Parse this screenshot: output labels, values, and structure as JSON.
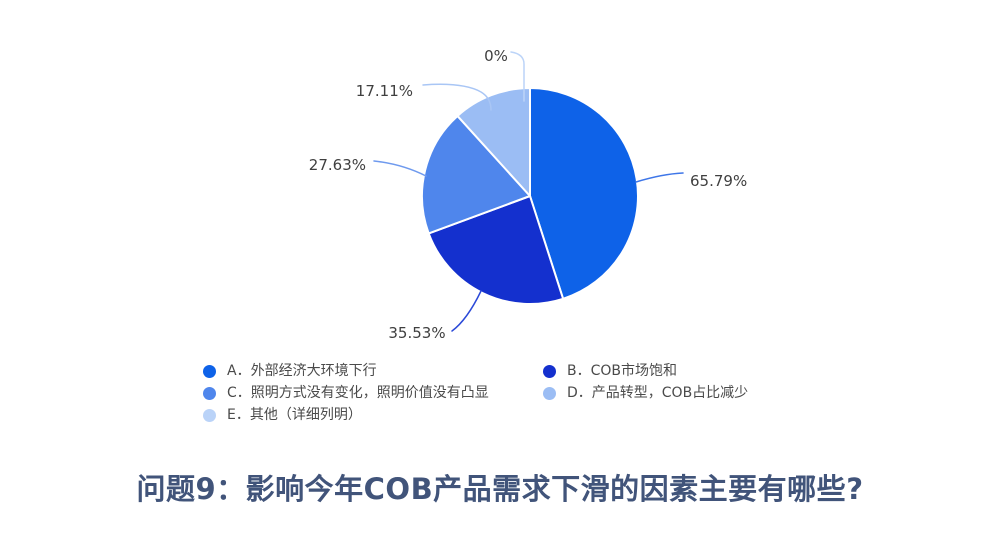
{
  "title": "问题9：影响今年COB产品需求下滑的因素主要有哪些?",
  "chart_data": {
    "type": "pie",
    "start_angle_deg": 0,
    "direction": "clockwise",
    "legend_position": "bottom",
    "slices": [
      {
        "key": "A",
        "legend": "A．外部经济大环境下行",
        "value": 65.79,
        "percent_label": "65.79%",
        "color": "#0E62E8",
        "leader_color": "#3E76E8"
      },
      {
        "key": "B",
        "legend": "B．COB市场饱和",
        "value": 35.53,
        "percent_label": "35.53%",
        "color": "#1430CE",
        "leader_color": "#2B49D8"
      },
      {
        "key": "C",
        "legend": "C．照明方式没有变化，照明价值没有凸显",
        "value": 27.63,
        "percent_label": "27.63%",
        "color": "#4F86EC",
        "leader_color": "#6F9AEE"
      },
      {
        "key": "D",
        "legend": "D．产品转型，COB占比减少",
        "value": 17.11,
        "percent_label": "17.11%",
        "color": "#9BBDF4",
        "leader_color": "#A9C6F5"
      },
      {
        "key": "E",
        "legend": "E．其他（详细列明）",
        "value": 0,
        "percent_label": "0%",
        "color": "#BAD3F8",
        "leader_color": "#BCD4F8"
      }
    ],
    "label_color": "#3F3F3F",
    "legend_text_color": "#4A4A4A",
    "title_color": "#41547A",
    "background": "#FFFFFF",
    "slice_separator_color": "#FFFFFF"
  }
}
